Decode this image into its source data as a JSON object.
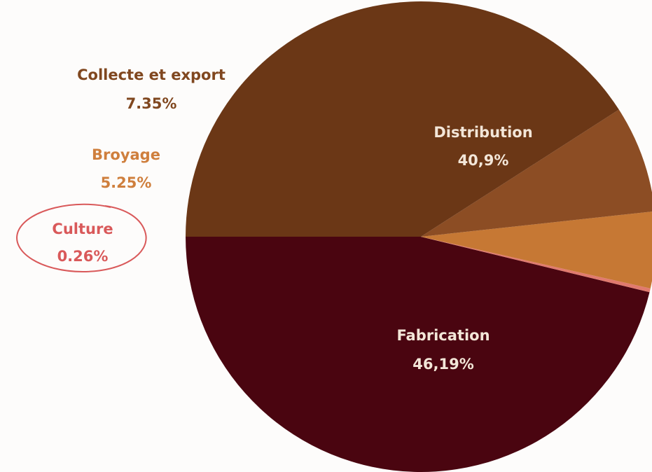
{
  "chart_data": {
    "type": "pie",
    "title": "",
    "slices": [
      {
        "label": "Fabrication",
        "display_value": "46,19%",
        "value": 46.19,
        "color": "#4a0510",
        "text_color": "#f3e6d8"
      },
      {
        "label": "Culture",
        "display_value": "0.26%",
        "value": 0.26,
        "color": "#e07a6e",
        "text_color": "#d9595a"
      },
      {
        "label": "Broyage",
        "display_value": "5.25%",
        "value": 5.25,
        "color": "#c67834",
        "text_color": "#cf7f3d"
      },
      {
        "label": "Collecte et export",
        "display_value": "7.35%",
        "value": 7.35,
        "color": "#8c4d24",
        "text_color": "#80471f"
      },
      {
        "label": "Distribution",
        "display_value": "40,9%",
        "value": 40.9,
        "color": "#6b3716",
        "text_color": "#f3e6d8"
      }
    ],
    "highlighted_label": "Culture",
    "highlight_color": "#d9595a"
  }
}
